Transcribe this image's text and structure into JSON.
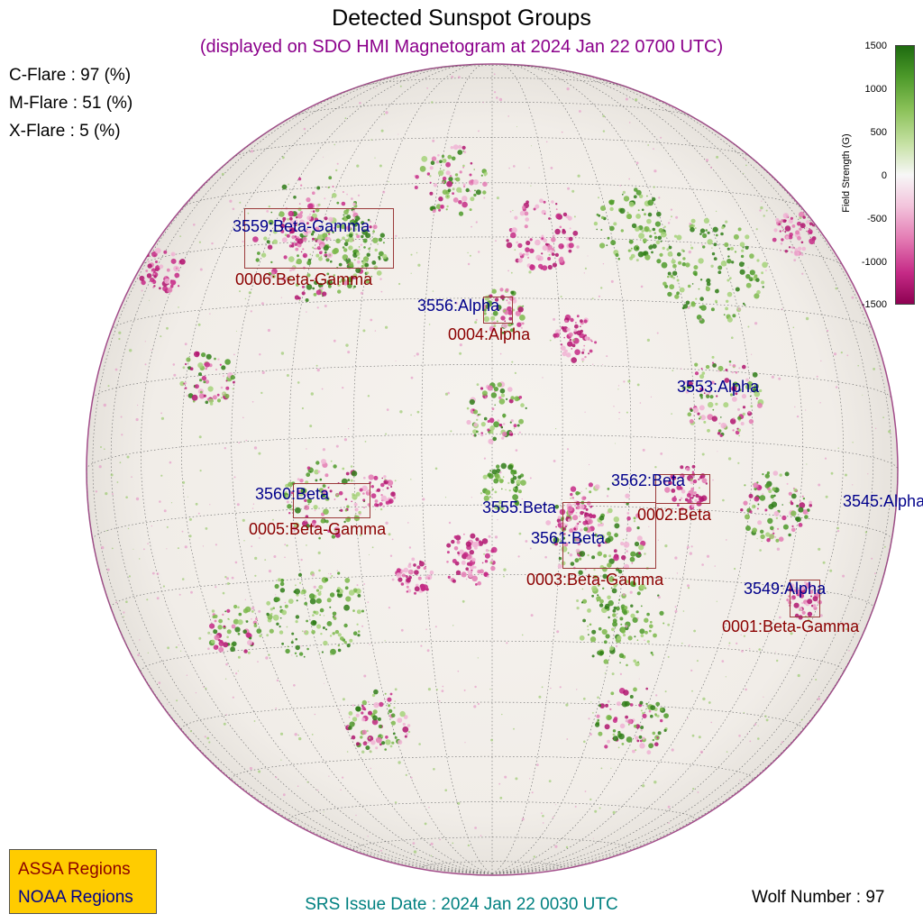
{
  "title": "Detected Sunspot Groups",
  "subtitle": "(displayed on SDO HMI Magnetogram at 2024 Jan 22 0700 UTC)",
  "flares": [
    {
      "label": "C-Flare : 97 (%)"
    },
    {
      "label": "M-Flare : 51 (%)"
    },
    {
      "label": "X-Flare :  5 (%)"
    }
  ],
  "colorbar": {
    "label": "Field Strength (G)",
    "ticks": [
      "1500",
      "1000",
      "500",
      "0",
      "-500",
      "-1000",
      "-1500"
    ],
    "top_color": "#1e6b10",
    "bottom_color": "#8e0152"
  },
  "regions": {
    "r3559": {
      "noaa": "3559:Beta-Gamma",
      "assa": "0006:Beta-Gamma"
    },
    "r3556": {
      "noaa": "3556:Alpha",
      "assa": "0004:Alpha"
    },
    "r3553": {
      "noaa": "3553:Alpha"
    },
    "r3562": {
      "noaa": "3562:Beta",
      "assa": "0002:Beta"
    },
    "r3545": {
      "noaa": "3545:Alpha"
    },
    "r3560": {
      "noaa": "3560:Beta",
      "assa": "0005:Beta-Gamma"
    },
    "r3555": {
      "noaa": "3555:Beta"
    },
    "r3561": {
      "noaa": "3561:Beta",
      "assa": "0003:Beta-Gamma"
    },
    "r3549": {
      "noaa": "3549:Alpha",
      "assa": "0001:Beta-Gamma"
    }
  },
  "legend": {
    "assa": "ASSA Regions",
    "noaa": "NOAA Regions"
  },
  "srs_issue": "SRS Issue Date : 2024 Jan 22 0030 UTC",
  "wolf_number": "Wolf Number : 97",
  "colors": {
    "noaa": "#00008b",
    "assa": "#8b0000",
    "box": "#9b3a3a",
    "legend_bg": "#ffcc00"
  }
}
